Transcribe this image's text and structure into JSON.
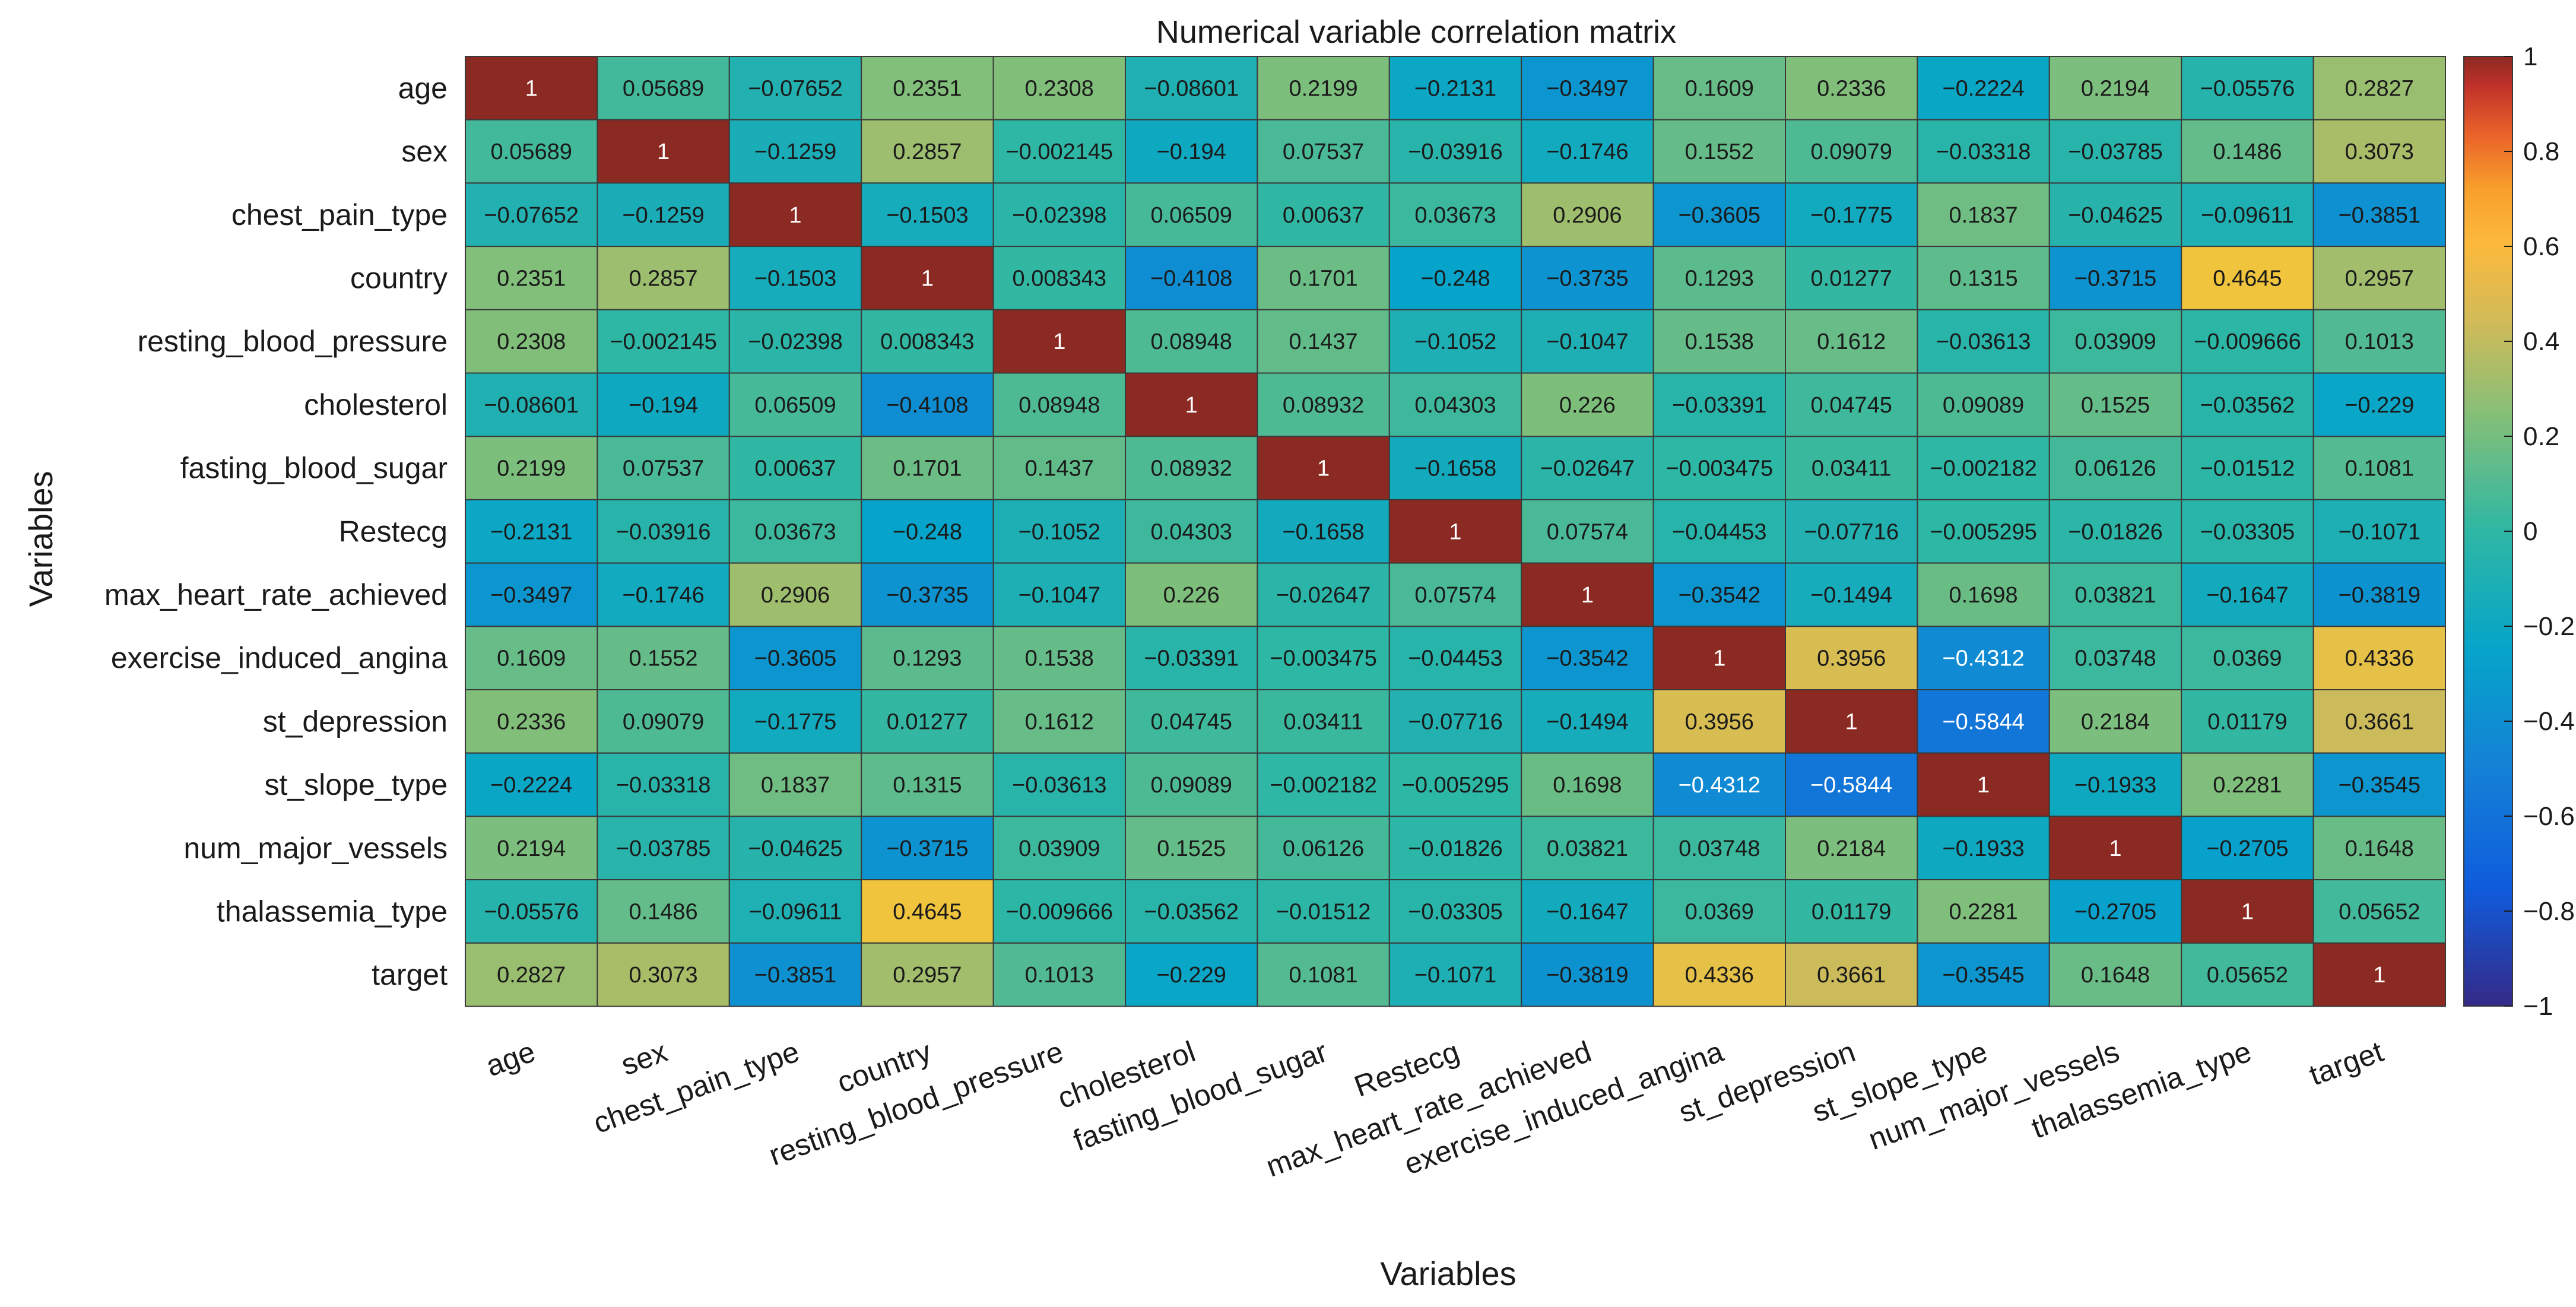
{
  "chart_data": {
    "type": "heatmap",
    "title": "Numerical variable correlation matrix",
    "xlabel": "Variables",
    "ylabel": "Variables",
    "variables": [
      "age",
      "sex",
      "chest_pain_type",
      "country",
      "resting_blood_pressure",
      "cholesterol",
      "fasting_blood_sugar",
      "Restecg",
      "max_heart_rate_achieved",
      "exercise_induced_angina",
      "st_depression",
      "st_slope_type",
      "num_major_vessels",
      "thalassemia_type",
      "target"
    ],
    "cell_labels": [
      [
        "1",
        "0.05689",
        "−0.07652",
        "0.2351",
        "0.2308",
        "−0.08601",
        "0.2199",
        "−0.2131",
        "−0.3497",
        "0.1609",
        "0.2336",
        "−0.2224",
        "0.2194",
        "−0.05576",
        "0.2827"
      ],
      [
        "0.05689",
        "1",
        "−0.1259",
        "0.2857",
        "−0.002145",
        "−0.194",
        "0.07537",
        "−0.03916",
        "−0.1746",
        "0.1552",
        "0.09079",
        "−0.03318",
        "−0.03785",
        "0.1486",
        "0.3073"
      ],
      [
        "−0.07652",
        "−0.1259",
        "1",
        "−0.1503",
        "−0.02398",
        "0.06509",
        "0.00637",
        "0.03673",
        "0.2906",
        "−0.3605",
        "−0.1775",
        "0.1837",
        "−0.04625",
        "−0.09611",
        "−0.3851"
      ],
      [
        "0.2351",
        "0.2857",
        "−0.1503",
        "1",
        "0.008343",
        "−0.4108",
        "0.1701",
        "−0.248",
        "−0.3735",
        "0.1293",
        "0.01277",
        "0.1315",
        "−0.3715",
        "0.4645",
        "0.2957"
      ],
      [
        "0.2308",
        "−0.002145",
        "−0.02398",
        "0.008343",
        "1",
        "0.08948",
        "0.1437",
        "−0.1052",
        "−0.1047",
        "0.1538",
        "0.1612",
        "−0.03613",
        "0.03909",
        "−0.009666",
        "0.1013"
      ],
      [
        "−0.08601",
        "−0.194",
        "0.06509",
        "−0.4108",
        "0.08948",
        "1",
        "0.08932",
        "0.04303",
        "0.226",
        "−0.03391",
        "0.04745",
        "0.09089",
        "0.1525",
        "−0.03562",
        "−0.229"
      ],
      [
        "0.2199",
        "0.07537",
        "0.00637",
        "0.1701",
        "0.1437",
        "0.08932",
        "1",
        "−0.1658",
        "−0.02647",
        "−0.003475",
        "0.03411",
        "−0.002182",
        "0.06126",
        "−0.01512",
        "0.1081"
      ],
      [
        "−0.2131",
        "−0.03916",
        "0.03673",
        "−0.248",
        "−0.1052",
        "0.04303",
        "−0.1658",
        "1",
        "0.07574",
        "−0.04453",
        "−0.07716",
        "−0.005295",
        "−0.01826",
        "−0.03305",
        "−0.1071"
      ],
      [
        "−0.3497",
        "−0.1746",
        "0.2906",
        "−0.3735",
        "−0.1047",
        "0.226",
        "−0.02647",
        "0.07574",
        "1",
        "−0.3542",
        "−0.1494",
        "0.1698",
        "0.03821",
        "−0.1647",
        "−0.3819"
      ],
      [
        "0.1609",
        "0.1552",
        "−0.3605",
        "0.1293",
        "0.1538",
        "−0.03391",
        "−0.003475",
        "−0.04453",
        "−0.3542",
        "1",
        "0.3956",
        "−0.4312",
        "0.03748",
        "0.0369",
        "0.4336"
      ],
      [
        "0.2336",
        "0.09079",
        "−0.1775",
        "0.01277",
        "0.1612",
        "0.04745",
        "0.03411",
        "−0.07716",
        "−0.1494",
        "0.3956",
        "1",
        "−0.5844",
        "0.2184",
        "0.01179",
        "0.3661"
      ],
      [
        "−0.2224",
        "−0.03318",
        "0.1837",
        "0.1315",
        "−0.03613",
        "0.09089",
        "−0.002182",
        "−0.005295",
        "0.1698",
        "−0.4312",
        "−0.5844",
        "1",
        "−0.1933",
        "0.2281",
        "−0.3545"
      ],
      [
        "0.2194",
        "−0.03785",
        "−0.04625",
        "−0.3715",
        "0.03909",
        "0.1525",
        "0.06126",
        "−0.01826",
        "0.03821",
        "0.03748",
        "0.2184",
        "−0.1933",
        "1",
        "−0.2705",
        "0.1648"
      ],
      [
        "−0.05576",
        "0.1486",
        "−0.09611",
        "0.4645",
        "−0.009666",
        "−0.03562",
        "−0.01512",
        "−0.03305",
        "−0.1647",
        "0.0369",
        "0.01179",
        "0.2281",
        "−0.2705",
        "1",
        "0.05652"
      ],
      [
        "0.2827",
        "0.3073",
        "−0.3851",
        "0.2957",
        "0.1013",
        "−0.229",
        "0.1081",
        "−0.1071",
        "−0.3819",
        "0.4336",
        "0.3661",
        "−0.3545",
        "0.1648",
        "0.05652",
        "1"
      ]
    ],
    "colorbar": {
      "range": [
        -1,
        1
      ],
      "ticks": [
        1,
        0.8,
        0.6,
        0.4,
        0.2,
        0,
        -0.2,
        -0.4,
        -0.6,
        -0.8,
        -1
      ],
      "tick_labels": [
        "1",
        "0.8",
        "0.6",
        "0.4",
        "0.2",
        "0",
        "−0.2",
        "−0.4",
        "−0.6",
        "−0.8",
        "−1"
      ],
      "colormap": "parula"
    },
    "colormap_stops": [
      {
        "v": -1.0,
        "c": "#352a87"
      },
      {
        "v": -0.75,
        "c": "#0f5cdd"
      },
      {
        "v": -0.5,
        "c": "#1481d6"
      },
      {
        "v": -0.25,
        "c": "#06a4ca"
      },
      {
        "v": 0.0,
        "c": "#2eb7a4"
      },
      {
        "v": 0.25,
        "c": "#87bf77"
      },
      {
        "v": 0.375,
        "c": "#d1bb59"
      },
      {
        "v": 0.5,
        "c": "#fec832"
      },
      {
        "v": 0.75,
        "c": "#f5f10e"
      },
      {
        "v": 1.0,
        "c": "#f9fb0e"
      }
    ]
  }
}
